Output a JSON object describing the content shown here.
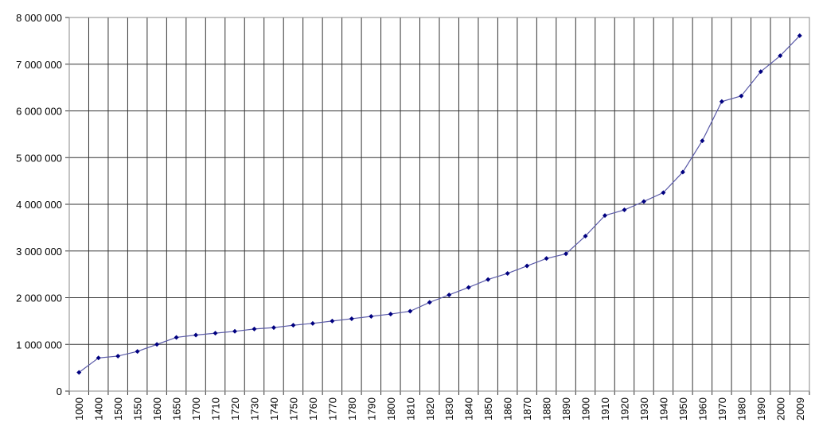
{
  "chart_data": {
    "type": "line",
    "title": "",
    "xlabel": "",
    "ylabel": "",
    "ylim": [
      0,
      8000000
    ],
    "ytick_step": 1000000,
    "grid": true,
    "colors": {
      "line": "#5a5aa8",
      "marker": "#000080",
      "grid": "#333333",
      "border": "#888888"
    },
    "ytick_labels": [
      "0",
      "1 000 000",
      "2 000 000",
      "3 000 000",
      "4 000 000",
      "5 000 000",
      "6 000 000",
      "7 000 000",
      "8 000 000"
    ],
    "categories": [
      "1000",
      "1400",
      "1500",
      "1550",
      "1600",
      "1650",
      "1700",
      "1710",
      "1720",
      "1730",
      "1740",
      "1750",
      "1760",
      "1770",
      "1780",
      "1790",
      "1800",
      "1810",
      "1820",
      "1830",
      "1840",
      "1850",
      "1860",
      "1870",
      "1880",
      "1890",
      "1900",
      "1910",
      "1920",
      "1930",
      "1940",
      "1950",
      "1960",
      "1970",
      "1980",
      "1990",
      "2000",
      "2009"
    ],
    "series": [
      {
        "name": "",
        "values": [
          400000,
          710000,
          750000,
          850000,
          1000000,
          1150000,
          1200000,
          1240000,
          1280000,
          1330000,
          1360000,
          1410000,
          1450000,
          1500000,
          1550000,
          1600000,
          1650000,
          1710000,
          1900000,
          2060000,
          2220000,
          2390000,
          2520000,
          2680000,
          2840000,
          2940000,
          3320000,
          3760000,
          3880000,
          4060000,
          4250000,
          4690000,
          5360000,
          6200000,
          6320000,
          6840000,
          7180000,
          7610000
        ]
      }
    ]
  }
}
